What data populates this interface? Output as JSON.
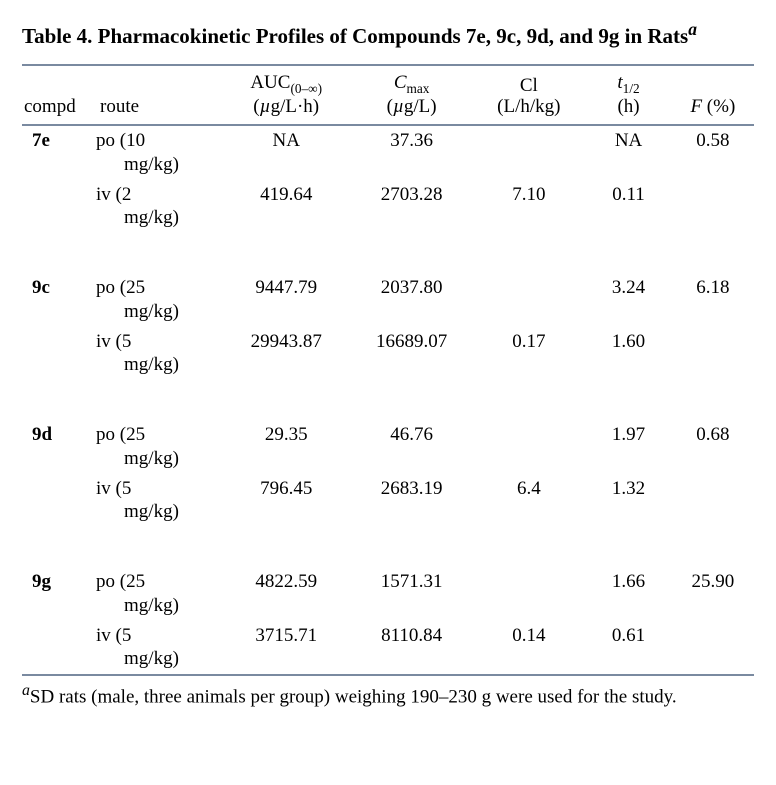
{
  "title_prefix": "Table 4. Pharmacokinetic Profiles of Compounds 7e, 9c, 9d, and 9g in Rats",
  "title_footnote_marker": "a",
  "headers": {
    "compd": "compd",
    "route": "route",
    "auc_top": "AUC",
    "auc_sub": "(0–∞)",
    "auc_unit_pre": "(",
    "auc_unit_mu": "µ",
    "auc_unit_rest": "g/L·h)",
    "cmax_top": "C",
    "cmax_sub": "max",
    "cmax_unit_pre": "(",
    "cmax_unit_mu": "µ",
    "cmax_unit_rest": "g/L)",
    "cl_top": "Cl",
    "cl_unit": "(L/h/kg)",
    "t12_t": "t",
    "t12_sub": "1/2",
    "t12_unit": "(h)",
    "f_it": "F",
    "f_rest": " (%)"
  },
  "groups": [
    {
      "compd": "7e",
      "rows": [
        {
          "route_a": "po (10",
          "route_b": "mg/kg)",
          "auc": "NA",
          "cmax": "37.36",
          "cl": "",
          "t12": "NA",
          "f": "0.58"
        },
        {
          "route_a": "iv (2",
          "route_b": "mg/kg)",
          "auc": "419.64",
          "cmax": "2703.28",
          "cl": "7.10",
          "t12": "0.11",
          "f": ""
        }
      ]
    },
    {
      "compd": "9c",
      "rows": [
        {
          "route_a": "po (25",
          "route_b": "mg/kg)",
          "auc": "9447.79",
          "cmax": "2037.80",
          "cl": "",
          "t12": "3.24",
          "f": "6.18"
        },
        {
          "route_a": "iv (5",
          "route_b": "mg/kg)",
          "auc": "29943.87",
          "cmax": "16689.07",
          "cl": "0.17",
          "t12": "1.60",
          "f": ""
        }
      ]
    },
    {
      "compd": "9d",
      "rows": [
        {
          "route_a": "po (25",
          "route_b": "mg/kg)",
          "auc": "29.35",
          "cmax": "46.76",
          "cl": "",
          "t12": "1.97",
          "f": "0.68"
        },
        {
          "route_a": "iv (5",
          "route_b": "mg/kg)",
          "auc": "796.45",
          "cmax": "2683.19",
          "cl": "6.4",
          "t12": "1.32",
          "f": ""
        }
      ]
    },
    {
      "compd": "9g",
      "rows": [
        {
          "route_a": "po (25",
          "route_b": "mg/kg)",
          "auc": "4822.59",
          "cmax": "1571.31",
          "cl": "",
          "t12": "1.66",
          "f": "25.90"
        },
        {
          "route_a": "iv (5",
          "route_b": "mg/kg)",
          "auc": "3715.71",
          "cmax": "8110.84",
          "cl": "0.14",
          "t12": "0.61",
          "f": ""
        }
      ]
    }
  ],
  "footnote_marker": "a",
  "footnote_text": "SD rats (male, three animals per group) weighing 190–230 g were used for the study.",
  "colors": {
    "rule": "#7a8aa0",
    "text": "#000000",
    "background": "#ffffff"
  },
  "col_widths": [
    "72px",
    "122px",
    "126px",
    "118px",
    "110px",
    "84px",
    "80px"
  ]
}
